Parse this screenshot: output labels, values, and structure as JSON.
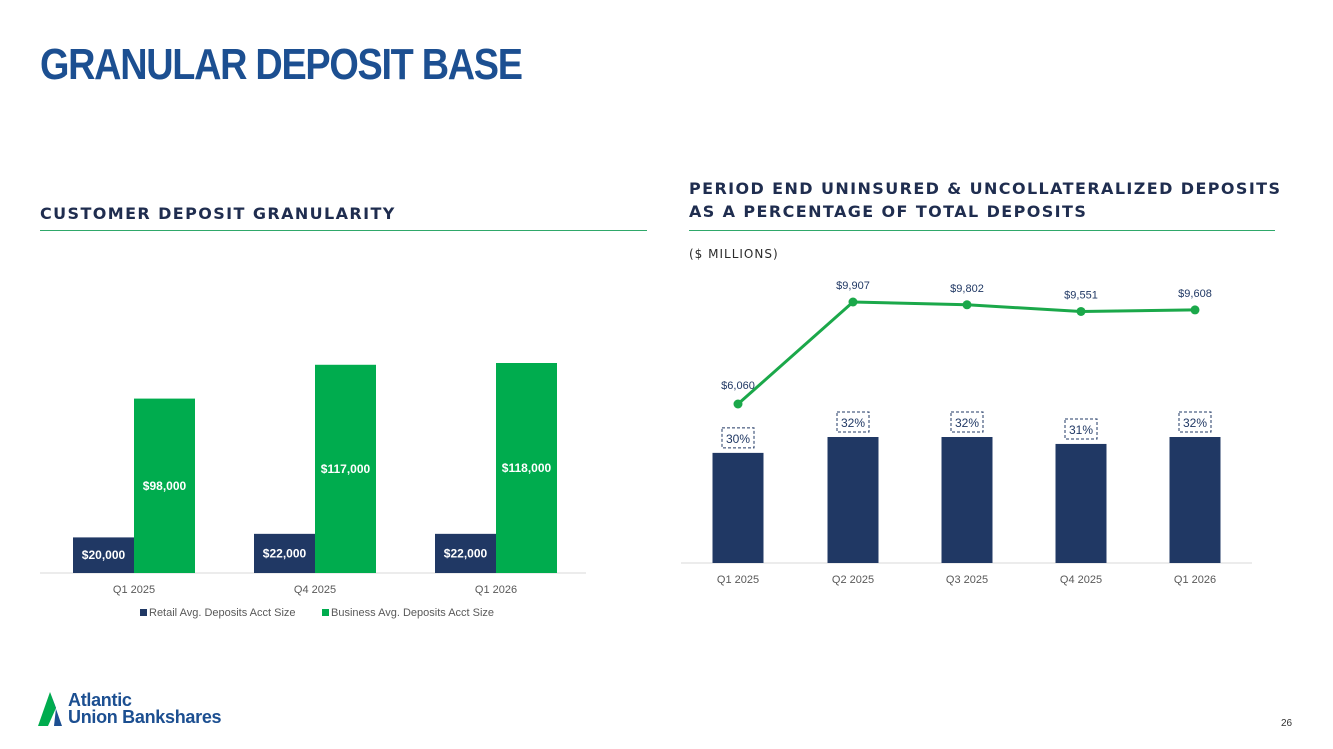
{
  "page": {
    "title": "GRANULAR DEPOSIT BASE",
    "page_number": "26",
    "logo": {
      "line1": "Atlantic",
      "line2": "Union Bankshares"
    }
  },
  "left_panel": {
    "title": "CUSTOMER DEPOSIT GRANULARITY"
  },
  "right_panel": {
    "title_line1": "PERIOD END UNINSURED & UNCOLLATERALIZED DEPOSITS",
    "title_line2": "AS A PERCENTAGE OF TOTAL DEPOSITS",
    "units": "($ MILLIONS)"
  },
  "colors": {
    "navy": "#203864",
    "green": "#00ac4e",
    "title_blue": "#1c4f91",
    "rule_green": "#2fa86a"
  },
  "chart_data": [
    {
      "type": "bar",
      "title": "CUSTOMER DEPOSIT GRANULARITY",
      "categories": [
        "Q1 2025",
        "Q4 2025",
        "Q1 2026"
      ],
      "series": [
        {
          "name": "Retail Avg. Deposits Acct Size",
          "values": [
            20000,
            22000,
            22000
          ],
          "labels": [
            "$20,000",
            "$22,000",
            "$22,000"
          ],
          "color": "#203864"
        },
        {
          "name": "Business Avg. Deposits Acct Size",
          "values": [
            98000,
            117000,
            118000
          ],
          "labels": [
            "$98,000",
            "$117,000",
            "$118,000"
          ],
          "color": "#00ac4e"
        }
      ],
      "legend": "bottom",
      "grid": false
    },
    {
      "type": "bar",
      "title": "PERIOD END UNINSURED & UNCOLLATERALIZED DEPOSITS AS A PERCENTAGE OF TOTAL DEPOSITS",
      "categories": [
        "Q1 2025",
        "Q2 2025",
        "Q3 2025",
        "Q4 2025",
        "Q1 2026"
      ],
      "bar_series": {
        "values": [
          30,
          32,
          32,
          31,
          32
        ],
        "labels": [
          "30%",
          "32%",
          "32%",
          "31%",
          "32%"
        ],
        "color": "#203864"
      },
      "line_series": {
        "values": [
          6060,
          9907,
          9802,
          9551,
          9608
        ],
        "labels": [
          "$6,060",
          "$9,907",
          "$9,802",
          "$9,551",
          "$9,608"
        ],
        "color": "#1ba84a"
      },
      "legend": "none",
      "grid": false
    }
  ]
}
